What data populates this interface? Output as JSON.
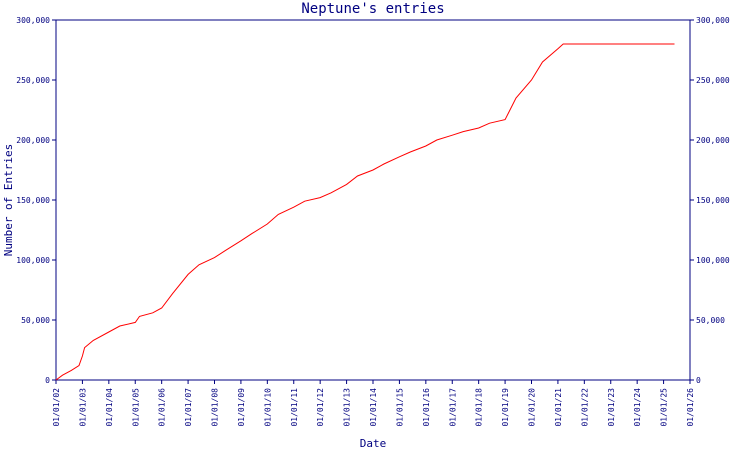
{
  "chart_data": {
    "type": "line",
    "title": "Neptune's entries",
    "xlabel": "Date",
    "ylabel": "Number of Entries",
    "ylim": [
      0,
      300000
    ],
    "yticks": [
      0,
      50000,
      100000,
      150000,
      200000,
      250000,
      300000
    ],
    "ytick_labels": [
      "0",
      "50,000",
      "100,000",
      "150,000",
      "200,000",
      "250,000",
      "300,000"
    ],
    "xlim": [
      "2002-01-01",
      "2026-01-01"
    ],
    "xtick_labels": [
      "01/01/02",
      "01/01/03",
      "01/01/04",
      "01/01/05",
      "01/01/06",
      "01/01/07",
      "01/01/08",
      "01/01/09",
      "01/01/10",
      "01/01/11",
      "01/01/12",
      "01/01/13",
      "01/01/14",
      "01/01/15",
      "01/01/16",
      "01/01/17",
      "01/01/18",
      "01/01/19",
      "01/01/20",
      "01/01/21",
      "01/01/22",
      "01/01/23",
      "01/01/24",
      "01/01/25",
      "01/01/26"
    ],
    "grid": false,
    "right_axis": true,
    "series": [
      {
        "color": "#ff0000",
        "points": [
          [
            "2002-01-01",
            0
          ],
          [
            "2002-04-01",
            4000
          ],
          [
            "2002-08-01",
            8000
          ],
          [
            "2002-11-15",
            12000
          ],
          [
            "2003-01-01",
            20000
          ],
          [
            "2003-02-01",
            27000
          ],
          [
            "2003-06-01",
            33000
          ],
          [
            "2004-01-01",
            40000
          ],
          [
            "2004-06-01",
            45000
          ],
          [
            "2005-01-01",
            48000
          ],
          [
            "2005-03-01",
            53000
          ],
          [
            "2005-09-01",
            56000
          ],
          [
            "2006-01-01",
            60000
          ],
          [
            "2006-06-01",
            72000
          ],
          [
            "2007-01-01",
            88000
          ],
          [
            "2007-06-01",
            96000
          ],
          [
            "2008-01-01",
            102000
          ],
          [
            "2008-06-01",
            108000
          ],
          [
            "2009-01-01",
            116000
          ],
          [
            "2009-06-01",
            122000
          ],
          [
            "2010-01-01",
            130000
          ],
          [
            "2010-06-01",
            138000
          ],
          [
            "2011-01-01",
            144000
          ],
          [
            "2011-06-01",
            149000
          ],
          [
            "2012-01-01",
            152000
          ],
          [
            "2012-06-01",
            156000
          ],
          [
            "2013-01-01",
            163000
          ],
          [
            "2013-06-01",
            170000
          ],
          [
            "2014-01-01",
            175000
          ],
          [
            "2014-06-01",
            180000
          ],
          [
            "2015-01-01",
            186000
          ],
          [
            "2015-06-01",
            190000
          ],
          [
            "2016-01-01",
            195000
          ],
          [
            "2016-06-01",
            200000
          ],
          [
            "2017-01-01",
            204000
          ],
          [
            "2017-06-01",
            207000
          ],
          [
            "2018-01-01",
            210000
          ],
          [
            "2018-06-01",
            214000
          ],
          [
            "2019-01-01",
            217000
          ],
          [
            "2019-06-01",
            235000
          ],
          [
            "2020-01-01",
            250000
          ],
          [
            "2020-06-01",
            265000
          ],
          [
            "2021-01-01",
            276000
          ],
          [
            "2021-03-15",
            280000
          ],
          [
            "2025-06-01",
            280000
          ]
        ]
      }
    ]
  }
}
